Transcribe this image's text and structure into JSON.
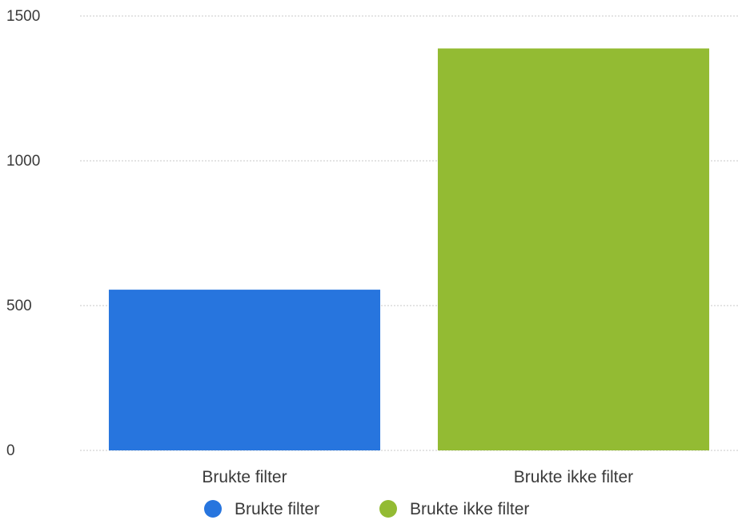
{
  "chart_data": {
    "type": "bar",
    "title": "",
    "xlabel": "",
    "ylabel": "",
    "categories": [
      "Brukte filter",
      "Brukte ikke filter"
    ],
    "series": [
      {
        "name": "Brukte filter",
        "values": [
          555,
          null
        ],
        "color": "#2775DE"
      },
      {
        "name": "Brukte ikke filter",
        "values": [
          null,
          1388
        ],
        "color": "#93BB33"
      }
    ],
    "ylim": [
      0,
      1500
    ],
    "yticks": [
      0,
      500,
      1000,
      1500
    ],
    "grid": true,
    "legend": {
      "position": "bottom",
      "items": [
        {
          "label": "Brukte filter",
          "color": "#2775DE"
        },
        {
          "label": "Brukte ikke filter",
          "color": "#93BB33"
        }
      ]
    }
  }
}
